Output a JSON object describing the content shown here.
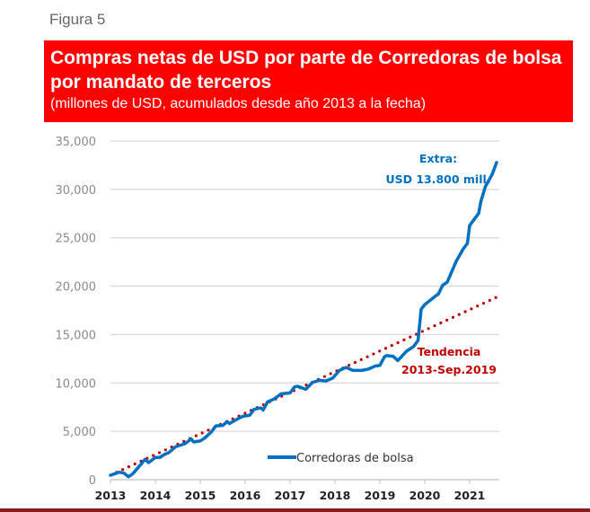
{
  "figure_label": "Figura 5",
  "colors": {
    "banner": "#fe0000",
    "series": "#0070c0",
    "trend": "#c00000",
    "grid": "#d9d9d9"
  },
  "chart_data": {
    "type": "line",
    "title": "Compras netas de USD por parte de Corredoras de bolsa por mandato de terceros",
    "subtitle": "(millones de USD, acumulados desde año 2013 a la fecha)",
    "xlabel": "",
    "ylabel": "",
    "xlim": [
      2013,
      2021.7
    ],
    "ylim": [
      0,
      35000
    ],
    "grid": true,
    "legend_position": "bottom-center",
    "x_ticks": [
      "2013",
      "2014",
      "2015",
      "2016",
      "2017",
      "2018",
      "2019",
      "2020",
      "2021"
    ],
    "y_ticks": [
      "0",
      "5,000",
      "10,000",
      "15,000",
      "20,000",
      "25,000",
      "30,000",
      "35,000"
    ],
    "series": [
      {
        "name": "Corredoras de bolsa",
        "style": "solid",
        "x": [
          2013.0,
          2013.2,
          2013.3,
          2013.4,
          2013.5,
          2013.7,
          2013.77,
          2013.85,
          2014.0,
          2014.1,
          2014.2,
          2014.3,
          2014.45,
          2014.65,
          2014.8,
          2014.85,
          2015.0,
          2015.1,
          2015.25,
          2015.35,
          2015.5,
          2015.6,
          2015.65,
          2015.8,
          2015.95,
          2016.1,
          2016.2,
          2016.35,
          2016.4,
          2016.5,
          2016.65,
          2016.8,
          2017.0,
          2017.1,
          2017.17,
          2017.35,
          2017.5,
          2017.65,
          2017.8,
          2017.95,
          2018.1,
          2018.25,
          2018.4,
          2018.6,
          2018.75,
          2018.9,
          2019.0,
          2019.1,
          2019.15,
          2019.3,
          2019.4,
          2019.6,
          2019.75,
          2019.85,
          2019.92,
          2020.0,
          2020.25,
          2020.3,
          2020.4,
          2020.5,
          2020.7,
          2020.85,
          2020.95,
          2021.0,
          2021.2,
          2021.25,
          2021.35,
          2021.5,
          2021.6
        ],
        "y": [
          460,
          770,
          680,
          300,
          620,
          1700,
          2100,
          1760,
          2300,
          2300,
          2600,
          2800,
          3400,
          3700,
          4200,
          3900,
          4000,
          4300,
          4950,
          5560,
          5600,
          6000,
          5800,
          6200,
          6550,
          6650,
          7270,
          7420,
          7200,
          8040,
          8350,
          8870,
          8970,
          9590,
          9650,
          9340,
          10050,
          10270,
          10200,
          10500,
          11290,
          11600,
          11290,
          11290,
          11440,
          11750,
          11810,
          12680,
          12830,
          12740,
          12310,
          13300,
          13760,
          14380,
          17620,
          18090,
          19020,
          19170,
          20100,
          20410,
          22570,
          23800,
          24430,
          26280,
          27520,
          28760,
          30300,
          31540,
          32780
        ]
      },
      {
        "name": "Tendencia 2013-Sep.2019",
        "style": "dotted",
        "x": [
          2013.0,
          2021.6
        ],
        "y": [
          460,
          18860
        ]
      }
    ],
    "annotations": [
      {
        "lines": [
          "Extra:",
          "USD 13.800 mill."
        ],
        "color": "#0070c0"
      },
      {
        "lines": [
          "Tendencia",
          "2013-Sep.2019"
        ],
        "color": "#c00000"
      }
    ]
  }
}
